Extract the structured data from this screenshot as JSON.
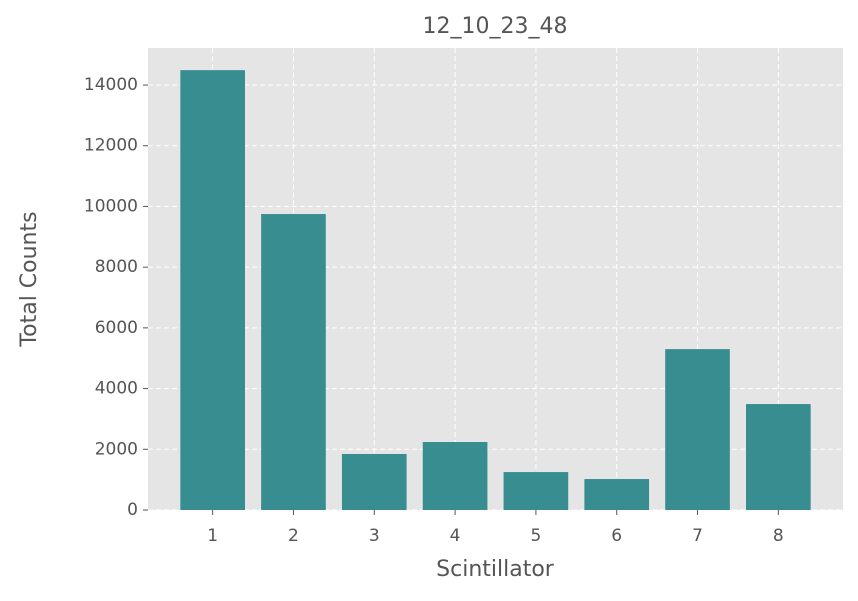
{
  "chart_data": {
    "type": "bar",
    "title": "12_10_23_48",
    "x_label": "Scintillator",
    "y_label": "Total Counts",
    "x": [
      1,
      2,
      3,
      4,
      5,
      6,
      7,
      8
    ],
    "values": [
      14490,
      9750,
      1845,
      2240,
      1250,
      1020,
      5300,
      3490
    ],
    "color": "#378d90",
    "xlim": [
      0.2,
      8.8
    ],
    "xticks": [
      1,
      2,
      3,
      4,
      5,
      6,
      7,
      8
    ],
    "ylim": [
      0,
      15220
    ],
    "yticks": [
      0,
      2000,
      4000,
      6000,
      8000,
      10000,
      12000,
      14000
    ],
    "grid": true
  }
}
